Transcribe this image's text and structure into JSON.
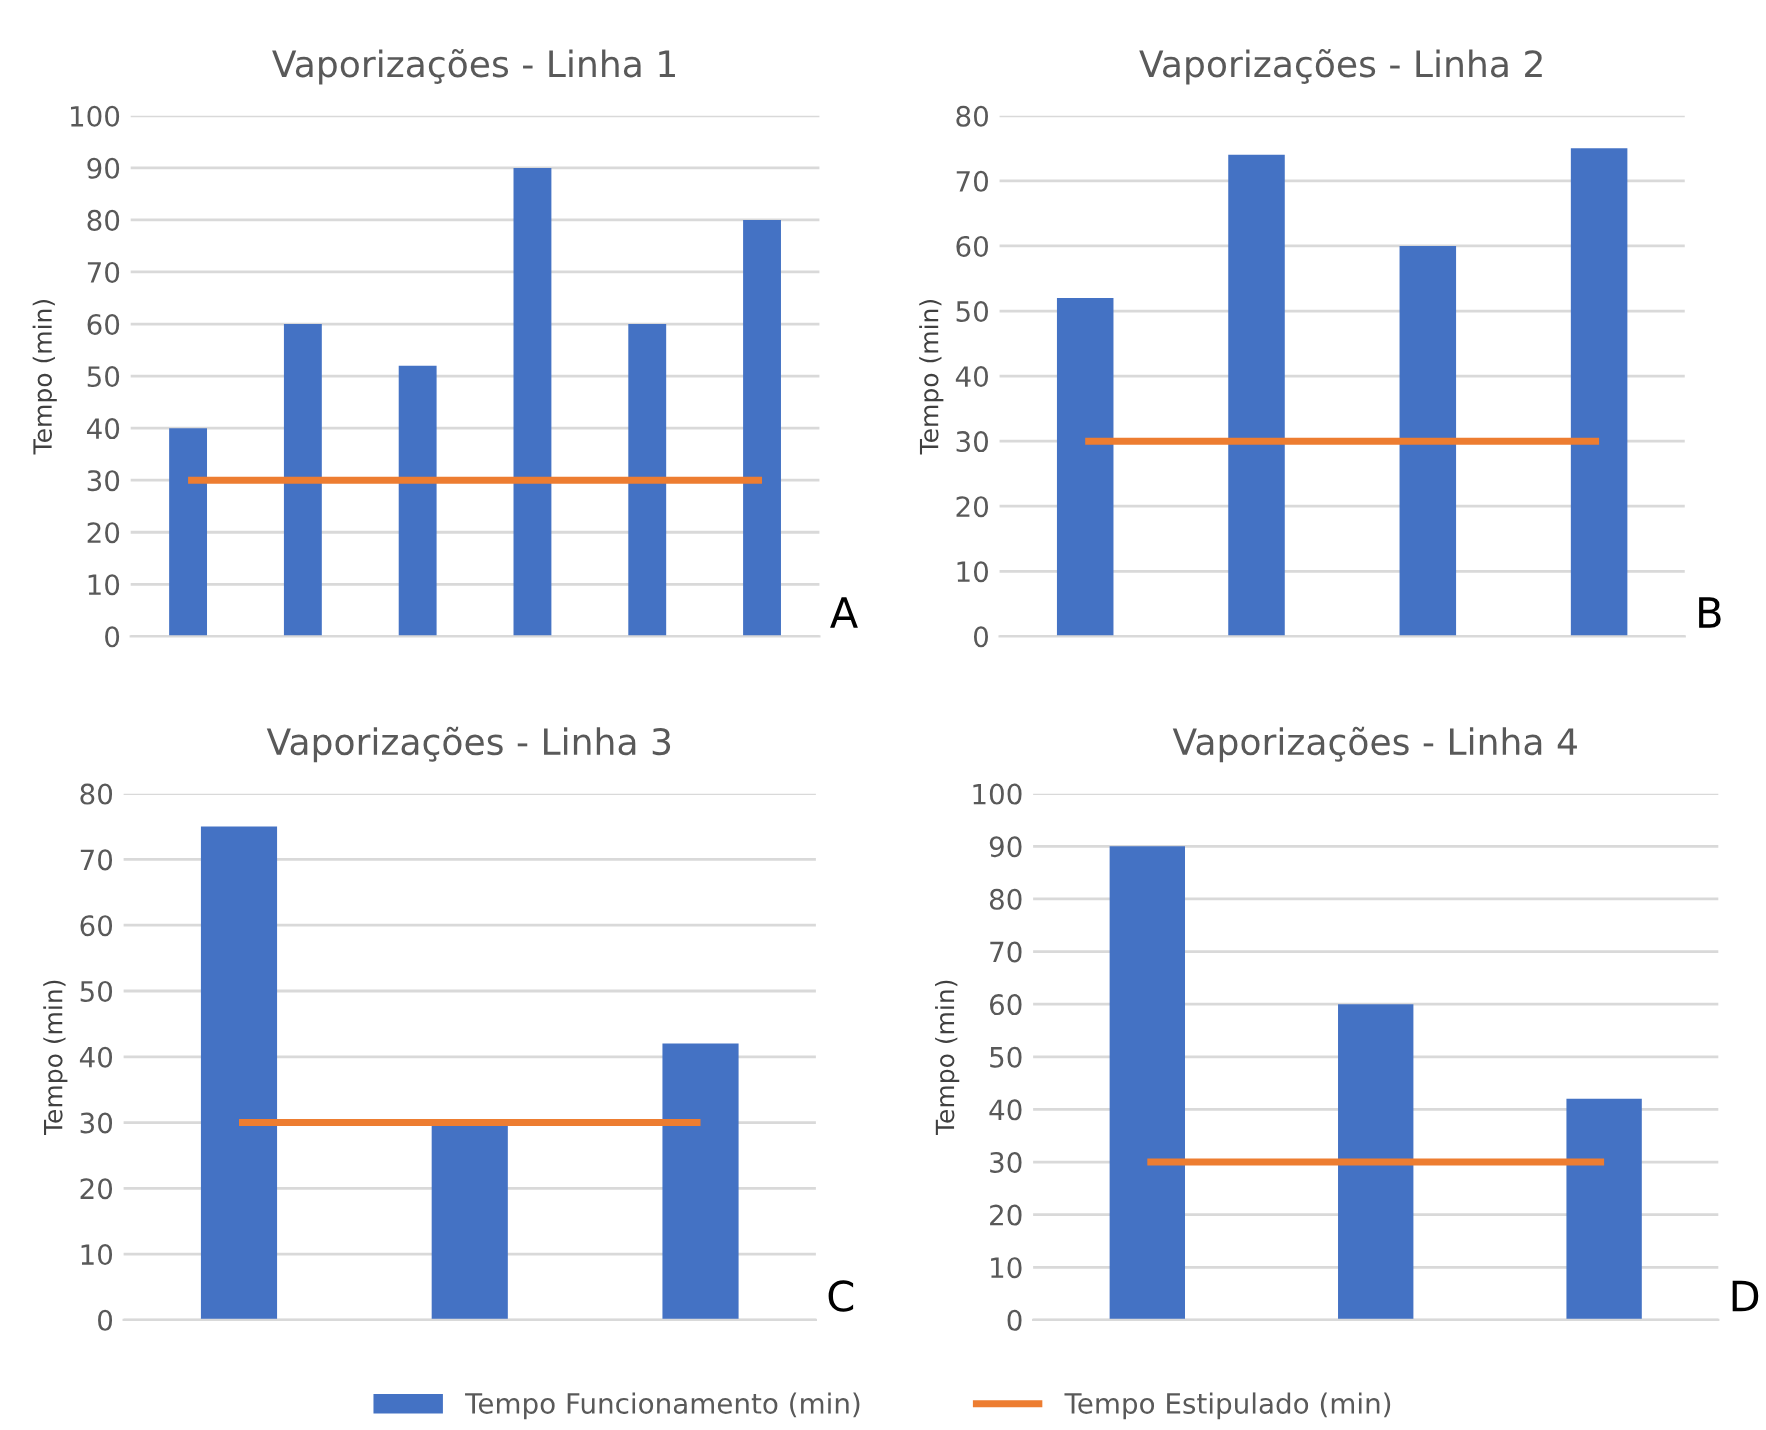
{
  "chart_data": [
    {
      "type": "bar",
      "title": "Vaporizações - Linha 1",
      "ylabel": "Tempo (min)",
      "categories": [
        null,
        null,
        null,
        null,
        null,
        null
      ],
      "series": [
        {
          "name": "Tempo Funcionamento (min)",
          "color": "#4472c4",
          "values": [
            40,
            60,
            52,
            90,
            60,
            80
          ]
        },
        {
          "name": "Tempo Estipulado (min)",
          "type": "line",
          "color": "#ed7d31",
          "values": [
            30,
            30,
            30,
            30,
            30,
            30
          ]
        }
      ],
      "ylim": [
        0,
        100
      ],
      "yticks": [
        0,
        10,
        20,
        30,
        40,
        50,
        60,
        70,
        80,
        90,
        100
      ],
      "grid": "y",
      "legend": "bottom",
      "annotations": [
        "A"
      ]
    },
    {
      "type": "bar",
      "title": "Vaporizações - Linha 2",
      "ylabel": "Tempo (min)",
      "categories": [
        null,
        null,
        null,
        null
      ],
      "series": [
        {
          "color": "#4472c4",
          "values": [
            52,
            74,
            60,
            75
          ]
        },
        {
          "type": "line",
          "color": "#ed7d31",
          "values": [
            30,
            30,
            30,
            30
          ]
        }
      ],
      "ylim": [
        0,
        80
      ],
      "yticks": [
        0,
        10,
        20,
        30,
        40,
        50,
        60,
        70,
        80
      ],
      "grid": "y",
      "annotations": [
        "B"
      ]
    },
    {
      "type": "bar",
      "title": "Vaporizações - Linha 3",
      "ylabel": "Tempo (min)",
      "categories": [
        null,
        null,
        null
      ],
      "series": [
        {
          "color": "#4472c4",
          "values": [
            75,
            30,
            42
          ]
        },
        {
          "type": "line",
          "color": "#ed7d31",
          "values": [
            30,
            30,
            30
          ]
        }
      ],
      "ylim": [
        0,
        80
      ],
      "yticks": [
        0,
        10,
        20,
        30,
        40,
        50,
        60,
        70,
        80
      ],
      "grid": "y",
      "annotations": [
        "C"
      ]
    },
    {
      "type": "bar",
      "title": "Vaporizações - Linha 4",
      "ylabel": "Tempo (min)",
      "categories": [
        null,
        null,
        null
      ],
      "series": [
        {
          "color": "#4472c4",
          "values": [
            90,
            60,
            42
          ]
        },
        {
          "type": "line",
          "color": "#ed7d31",
          "values": [
            30,
            30,
            30
          ]
        }
      ],
      "ylim": [
        0,
        100
      ],
      "yticks": [
        0,
        10,
        20,
        30,
        40,
        50,
        60,
        70,
        80,
        90,
        100
      ],
      "grid": "y",
      "annotations": [
        "D"
      ]
    }
  ]
}
